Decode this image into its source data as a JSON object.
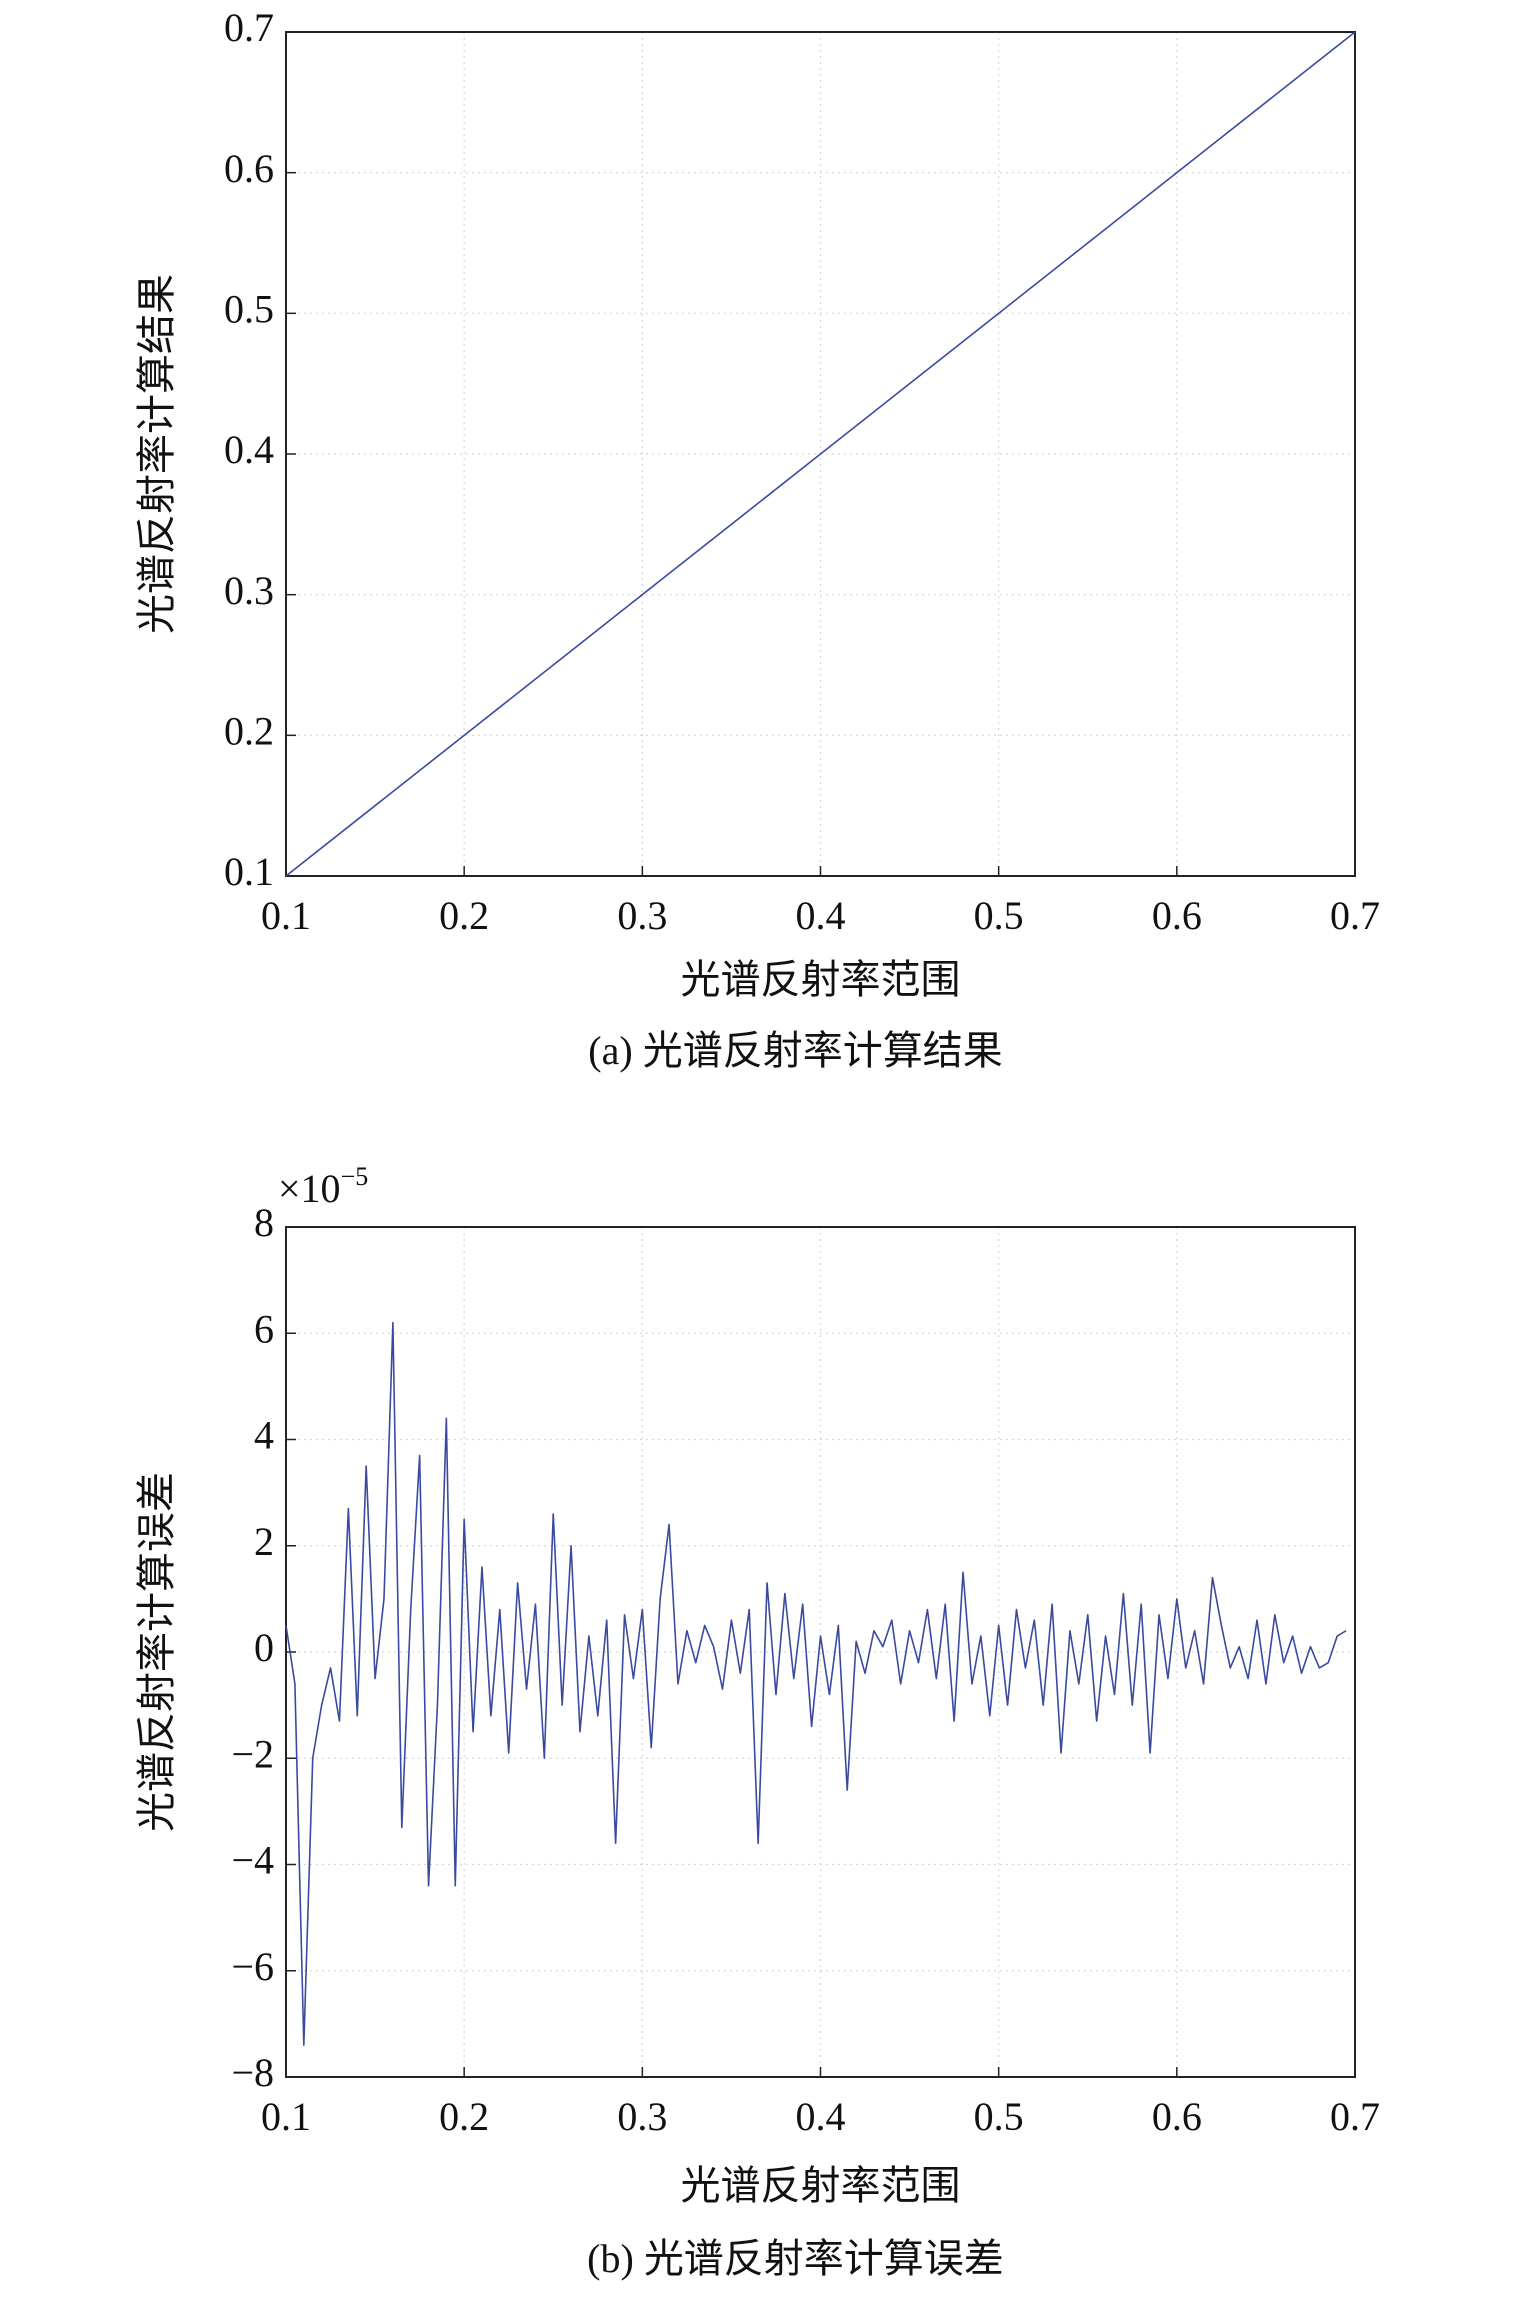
{
  "chart_data": [
    {
      "type": "line",
      "caption": "(a) 光谱反射率计算结果",
      "xlabel": "光谱反射率范围",
      "ylabel": "光谱反射率计算结果",
      "x": [
        0.1,
        0.2,
        0.3,
        0.4,
        0.5,
        0.6,
        0.7
      ],
      "series": [
        {
          "color": "#3a4aa0",
          "values": [
            0.1,
            0.2,
            0.3,
            0.4,
            0.5,
            0.6,
            0.7
          ]
        }
      ],
      "xlim": [
        0.1,
        0.7
      ],
      "xticks": [
        0.1,
        0.2,
        0.3,
        0.4,
        0.5,
        0.6,
        0.7
      ],
      "ylim": [
        0.1,
        0.7
      ],
      "yticks": [
        0.1,
        0.2,
        0.3,
        0.4,
        0.5,
        0.6,
        0.7
      ],
      "grid": true
    },
    {
      "type": "line",
      "caption": "(b) 光谱反射率计算误差",
      "xlabel": "光谱反射率范围",
      "ylabel": "光谱反射率计算误差",
      "axis_multiplier": {
        "base": "×10",
        "exponent": "−5"
      },
      "x": [
        0.1,
        0.105,
        0.11,
        0.115,
        0.12,
        0.125,
        0.13,
        0.135,
        0.14,
        0.145,
        0.15,
        0.155,
        0.16,
        0.165,
        0.17,
        0.175,
        0.18,
        0.185,
        0.19,
        0.195,
        0.2,
        0.205,
        0.21,
        0.215,
        0.22,
        0.225,
        0.23,
        0.235,
        0.24,
        0.245,
        0.25,
        0.255,
        0.26,
        0.265,
        0.27,
        0.275,
        0.28,
        0.285,
        0.29,
        0.295,
        0.3,
        0.305,
        0.31,
        0.315,
        0.32,
        0.325,
        0.33,
        0.335,
        0.34,
        0.345,
        0.35,
        0.355,
        0.36,
        0.365,
        0.37,
        0.375,
        0.38,
        0.385,
        0.39,
        0.395,
        0.4,
        0.405,
        0.41,
        0.415,
        0.42,
        0.425,
        0.43,
        0.435,
        0.44,
        0.445,
        0.45,
        0.455,
        0.46,
        0.465,
        0.47,
        0.475,
        0.48,
        0.485,
        0.49,
        0.495,
        0.5,
        0.505,
        0.51,
        0.515,
        0.52,
        0.525,
        0.53,
        0.535,
        0.54,
        0.545,
        0.55,
        0.555,
        0.56,
        0.565,
        0.57,
        0.575,
        0.58,
        0.585,
        0.59,
        0.595,
        0.6,
        0.605,
        0.61,
        0.615,
        0.62,
        0.625,
        0.63,
        0.635,
        0.64,
        0.645,
        0.65,
        0.655,
        0.66,
        0.665,
        0.67,
        0.675,
        0.68,
        0.685,
        0.69,
        0.695
      ],
      "series": [
        {
          "color": "#3a4aa0",
          "values": [
            0.5,
            -0.6,
            -7.4,
            -2.0,
            -1.0,
            -0.3,
            -1.3,
            2.7,
            -1.2,
            3.5,
            -0.5,
            1.0,
            6.2,
            -3.3,
            0.8,
            3.7,
            -4.4,
            -1.0,
            4.4,
            -4.4,
            2.5,
            -1.5,
            1.6,
            -1.2,
            0.8,
            -1.9,
            1.3,
            -0.7,
            0.9,
            -2.0,
            2.6,
            -1.0,
            2.0,
            -1.5,
            0.3,
            -1.2,
            0.6,
            -3.6,
            0.7,
            -0.5,
            0.8,
            -1.8,
            1.0,
            2.4,
            -0.6,
            0.4,
            -0.2,
            0.5,
            0.1,
            -0.7,
            0.6,
            -0.4,
            0.8,
            -3.6,
            1.3,
            -0.8,
            1.1,
            -0.5,
            0.9,
            -1.4,
            0.3,
            -0.8,
            0.5,
            -2.6,
            0.2,
            -0.4,
            0.4,
            0.1,
            0.6,
            -0.6,
            0.4,
            -0.2,
            0.8,
            -0.5,
            0.9,
            -1.3,
            1.5,
            -0.6,
            0.3,
            -1.2,
            0.5,
            -1.0,
            0.8,
            -0.3,
            0.6,
            -1.0,
            0.9,
            -1.9,
            0.4,
            -0.6,
            0.7,
            -1.3,
            0.3,
            -0.8,
            1.1,
            -1.0,
            0.9,
            -1.9,
            0.7,
            -0.5,
            1.0,
            -0.3,
            0.4,
            -0.6,
            1.4,
            0.5,
            -0.3,
            0.1,
            -0.5,
            0.6,
            -0.6,
            0.7,
            -0.2,
            0.3,
            -0.4,
            0.1,
            -0.3,
            -0.2,
            0.3,
            0.4
          ]
        }
      ],
      "xlim": [
        0.1,
        0.7
      ],
      "xticks": [
        0.1,
        0.2,
        0.3,
        0.4,
        0.5,
        0.6,
        0.7
      ],
      "ylim": [
        -8,
        8
      ],
      "yticks": [
        {
          "value": -8,
          "label": "−8"
        },
        {
          "value": -6,
          "label": "−6"
        },
        {
          "value": -4,
          "label": "−4"
        },
        {
          "value": -2,
          "label": "−2"
        },
        0,
        2,
        4,
        6,
        8
      ],
      "grid": true
    }
  ]
}
